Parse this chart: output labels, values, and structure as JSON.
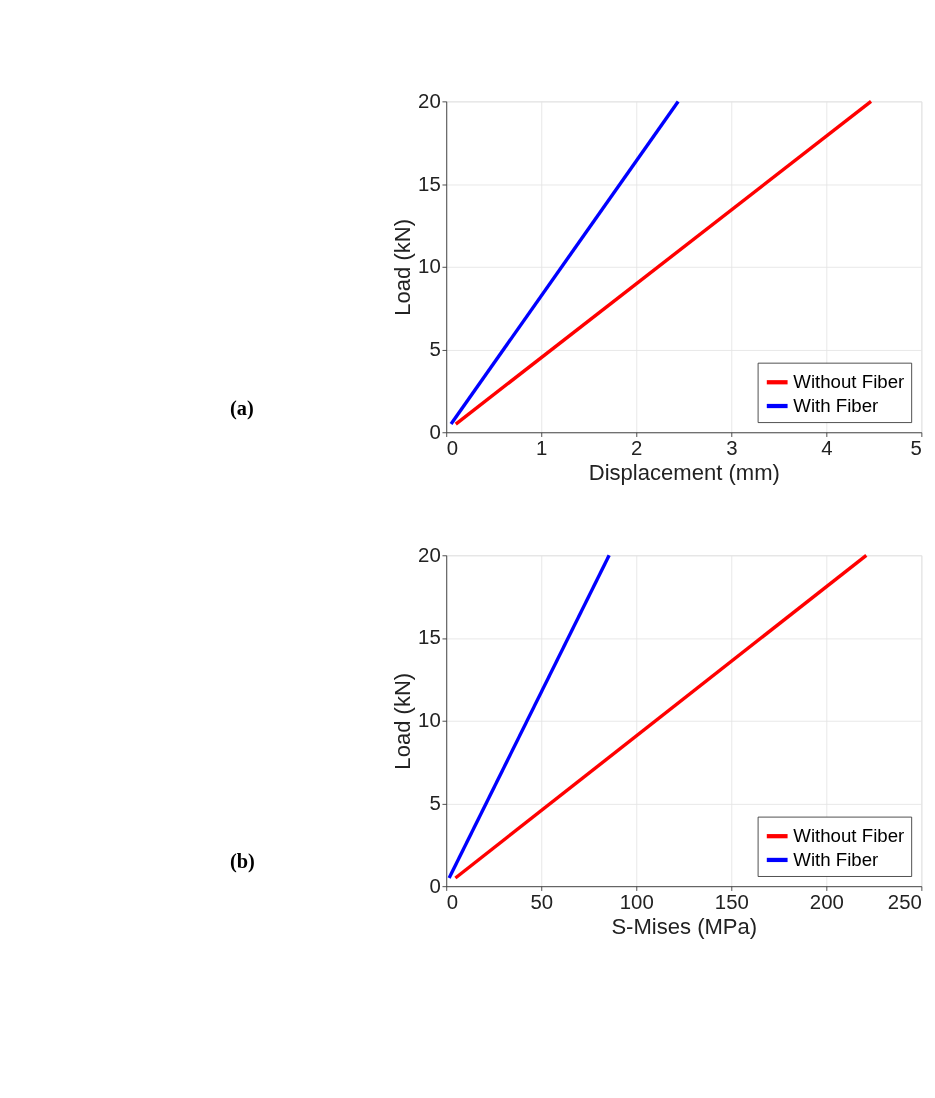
{
  "chart_data": [
    {
      "type": "line",
      "xlabel": "Displacement (mm)",
      "ylabel": "Load (kN)",
      "annotations": [
        "(a)"
      ],
      "xlim": [
        0,
        5
      ],
      "xticks": [
        0,
        1,
        2,
        3,
        4,
        5
      ],
      "ylim": [
        0,
        20
      ],
      "yticks": [
        0,
        5,
        10,
        15,
        20
      ],
      "grid": true,
      "legend": "bottom right",
      "line_style": "solid",
      "series": [
        {
          "name": "Without Fiber",
          "color": "#ff0000",
          "x": [
            0.1,
            4.47
          ],
          "values": [
            0.5,
            20
          ]
        },
        {
          "name": "With Fiber",
          "color": "#0000ff",
          "x": [
            0.05,
            2.44
          ],
          "values": [
            0.5,
            20
          ]
        }
      ]
    },
    {
      "type": "line",
      "xlabel": "S-Mises (MPa)",
      "ylabel": "Load (kN)",
      "annotations": [
        "(b)"
      ],
      "xlim": [
        0,
        250
      ],
      "xticks": [
        0,
        50,
        100,
        150,
        200,
        250
      ],
      "ylim": [
        0,
        20
      ],
      "yticks": [
        0,
        5,
        10,
        15,
        20
      ],
      "grid": true,
      "legend": "bottom right",
      "line_style": "solid",
      "series": [
        {
          "name": "Without Fiber",
          "color": "#ff0000",
          "x": [
            4.8,
            221
          ],
          "values": [
            0.5,
            20
          ]
        },
        {
          "name": "With Fiber",
          "color": "#0000ff",
          "x": [
            1.5,
            85.7
          ],
          "values": [
            0.5,
            20
          ]
        }
      ]
    }
  ]
}
